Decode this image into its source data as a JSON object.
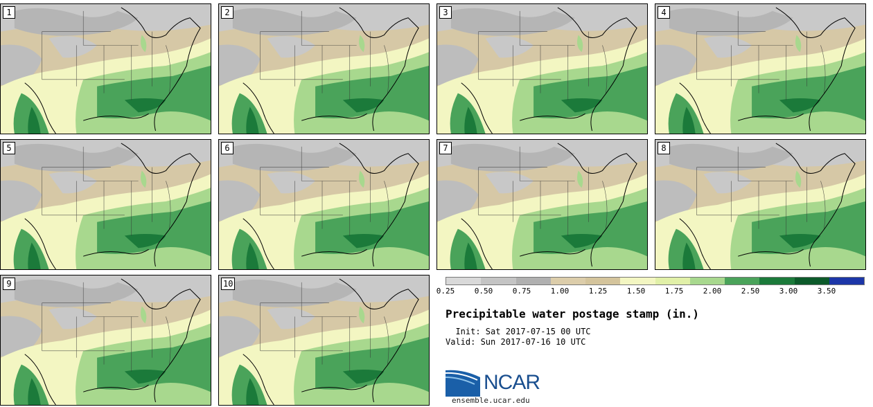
{
  "panels": [
    {
      "label": "1"
    },
    {
      "label": "2"
    },
    {
      "label": "3"
    },
    {
      "label": "4"
    },
    {
      "label": "5"
    },
    {
      "label": "6"
    },
    {
      "label": "7"
    },
    {
      "label": "8"
    },
    {
      "label": "9"
    },
    {
      "label": "10"
    }
  ],
  "legend": {
    "tick_labels": [
      "0.25",
      "0.50",
      "0.75",
      "1.00",
      "1.25",
      "1.50",
      "1.75",
      "2.00",
      "2.50",
      "3.00",
      "3.50"
    ],
    "colors": [
      "#d9d9d9",
      "#c4c4c4",
      "#b0b0b0",
      "#dccdaa",
      "#d4c49c",
      "#f3f6c2",
      "#e1f0a8",
      "#a8d88e",
      "#4aa35a",
      "#1b7a3a",
      "#0c5a2a",
      "#1c36a8"
    ]
  },
  "title": "Precipitable water postage stamp (in.)",
  "init": "  Init: Sat 2017-07-15 00 UTC",
  "valid": "Valid: Sun 2017-07-16 10 UTC",
  "logo": {
    "text": "NCAR",
    "url": "ensemble.ucar.edu"
  }
}
